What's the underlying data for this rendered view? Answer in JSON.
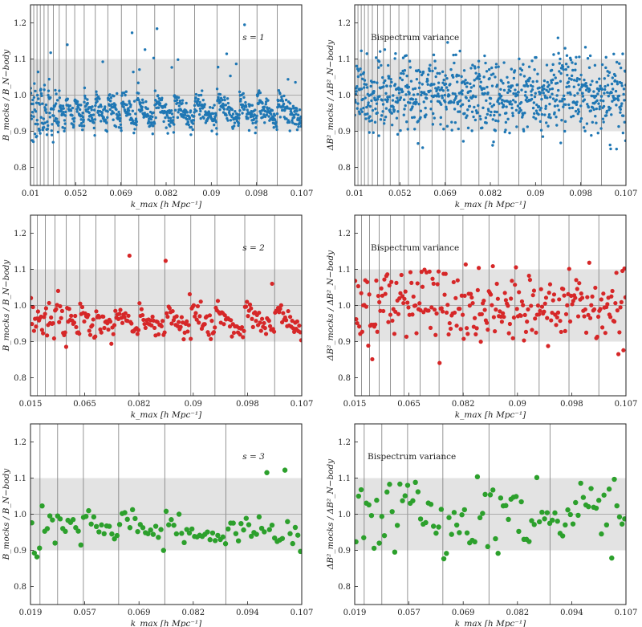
{
  "figure": {
    "panels": [
      {
        "id": "p1",
        "row": 0,
        "col": 0,
        "color": "#1f77b4",
        "annotation": "s = 1",
        "ylabel": "B_mocks / B_N−body",
        "xlabel": "k_max [h Mpc⁻¹]",
        "xticks": [
          "0.01",
          "0.052",
          "0.069",
          "0.082",
          "0.09",
          "0.098",
          "0.107"
        ],
        "yticks": [
          "0.8",
          "0.9",
          "1.0",
          "1.1",
          "1.2"
        ],
        "vlines": [
          0.0,
          0.012,
          0.024,
          0.036,
          0.05,
          0.065,
          0.084,
          0.106,
          0.131,
          0.163,
          0.198,
          0.239,
          0.285,
          0.335,
          0.392,
          0.458,
          0.53,
          0.605,
          0.688,
          0.77,
          0.835,
          0.91,
          1.0
        ],
        "n": 880,
        "seed": 11,
        "pattern": "sawtooth",
        "msize": 1.7
      },
      {
        "id": "p2",
        "row": 0,
        "col": 1,
        "color": "#1f77b4",
        "annotation": "Bispectrum variance",
        "ylabel": "ΔB²_mocks / ΔB²_N−body",
        "xlabel": "k_max [h Mpc⁻¹]",
        "xticks": [
          "0.01",
          "0.052",
          "0.069",
          "0.082",
          "0.09",
          "0.098",
          "0.107"
        ],
        "yticks": [
          "0.8",
          "0.9",
          "1.0",
          "1.1",
          "1.2"
        ],
        "vlines": [
          0.0,
          0.012,
          0.024,
          0.036,
          0.05,
          0.065,
          0.084,
          0.106,
          0.131,
          0.163,
          0.198,
          0.239,
          0.285,
          0.335,
          0.392,
          0.458,
          0.53,
          0.605,
          0.688,
          0.77,
          0.835,
          0.91,
          1.0
        ],
        "n": 880,
        "seed": 23,
        "pattern": "noise",
        "msize": 1.7
      },
      {
        "id": "p3",
        "row": 1,
        "col": 0,
        "color": "#d62728",
        "annotation": "s = 2",
        "ylabel": "B_mocks / B_N−body",
        "xlabel": "k_max [h Mpc⁻¹]",
        "xticks": [
          "0.015",
          "0.065",
          "0.082",
          "0.09",
          "0.098",
          "0.107"
        ],
        "yticks": [
          "0.8",
          "0.9",
          "1.0",
          "1.1",
          "1.2"
        ],
        "vlines": [
          0.0,
          0.025,
          0.055,
          0.09,
          0.132,
          0.182,
          0.241,
          0.311,
          0.399,
          0.495,
          0.591,
          0.68,
          0.79,
          0.9,
          1.0
        ],
        "n": 270,
        "seed": 37,
        "pattern": "sawtooth",
        "msize": 2.6
      },
      {
        "id": "p4",
        "row": 1,
        "col": 1,
        "color": "#d62728",
        "annotation": "Bispectrum variance",
        "ylabel": "ΔB²_mocks / ΔB²_N−body",
        "xlabel": "k_max [h Mpc⁻¹]",
        "xticks": [
          "0.015",
          "0.065",
          "0.082",
          "0.09",
          "0.098",
          "0.107"
        ],
        "yticks": [
          "0.8",
          "0.9",
          "1.0",
          "1.1",
          "1.2"
        ],
        "vlines": [
          0.0,
          0.025,
          0.055,
          0.09,
          0.132,
          0.182,
          0.241,
          0.311,
          0.399,
          0.495,
          0.591,
          0.68,
          0.79,
          0.9,
          1.0
        ],
        "n": 270,
        "seed": 51,
        "pattern": "noise",
        "msize": 2.6
      },
      {
        "id": "p5",
        "row": 2,
        "col": 0,
        "color": "#2ca02c",
        "annotation": "s = 3",
        "ylabel": "B_mocks / B_N−body",
        "xlabel": "k_max [h Mpc⁻¹]",
        "xticks": [
          "0.019",
          "0.057",
          "0.069",
          "0.082",
          "0.094",
          "0.107"
        ],
        "yticks": [
          "0.8",
          "0.9",
          "1.0",
          "1.1",
          "1.2"
        ],
        "vlines": [
          0.0,
          0.035,
          0.1,
          0.195,
          0.325,
          0.495,
          0.72,
          1.0
        ],
        "n": 105,
        "seed": 67,
        "pattern": "sawtooth",
        "msize": 3.2
      },
      {
        "id": "p6",
        "row": 2,
        "col": 1,
        "color": "#2ca02c",
        "annotation": "Bispectrum variance",
        "ylabel": "ΔB²_mocks / ΔB²_N−body",
        "xlabel": "k_max [h Mpc⁻¹]",
        "xticks": [
          "0.019",
          "0.057",
          "0.069",
          "0.082",
          "0.094",
          "0.107"
        ],
        "yticks": [
          "0.8",
          "0.9",
          "1.0",
          "1.1",
          "1.2"
        ],
        "vlines": [
          0.0,
          0.035,
          0.1,
          0.195,
          0.325,
          0.495,
          0.72,
          1.0
        ],
        "n": 105,
        "seed": 79,
        "pattern": "noise",
        "msize": 3.2
      }
    ]
  },
  "chart_data": [
    {
      "type": "scatter",
      "series": [
        {
          "name": "",
          "color": "#1f77b4"
        }
      ],
      "xlabel": "k_max [h Mpc⁻¹]",
      "ylabel": "B_mocks / B_N−body",
      "ylim": [
        0.75,
        1.25
      ],
      "band": [
        0.9,
        1.1
      ],
      "reference_line": 1.0,
      "xticklabels": [
        "0.01",
        "0.052",
        "0.069",
        "0.082",
        "0.09",
        "0.098",
        "0.107"
      ]
    },
    {
      "type": "scatter",
      "series": [
        {
          "name": "",
          "color": "#1f77b4"
        }
      ],
      "xlabel": "k_max [h Mpc⁻¹]",
      "ylabel": "ΔB²_mocks / ΔB²_N−body",
      "ylim": [
        0.75,
        1.25
      ],
      "band": [
        0.9,
        1.1
      ],
      "reference_line": 1.0,
      "xticklabels": [
        "0.01",
        "0.052",
        "0.069",
        "0.082",
        "0.09",
        "0.098",
        "0.107"
      ]
    },
    {
      "type": "scatter",
      "series": [
        {
          "name": "",
          "color": "#d62728"
        }
      ],
      "xlabel": "k_max [h Mpc⁻¹]",
      "ylabel": "B_mocks / B_N−body",
      "ylim": [
        0.75,
        1.25
      ],
      "band": [
        0.9,
        1.1
      ],
      "reference_line": 1.0,
      "xticklabels": [
        "0.015",
        "0.065",
        "0.082",
        "0.09",
        "0.098",
        "0.107"
      ]
    },
    {
      "type": "scatter",
      "series": [
        {
          "name": "",
          "color": "#d62728"
        }
      ],
      "xlabel": "k_max [h Mpc⁻¹]",
      "ylabel": "ΔB²_mocks / ΔB²_N−body",
      "ylim": [
        0.75,
        1.25
      ],
      "band": [
        0.9,
        1.1
      ],
      "reference_line": 1.0,
      "xticklabels": [
        "0.015",
        "0.065",
        "0.082",
        "0.09",
        "0.098",
        "0.107"
      ]
    },
    {
      "type": "scatter",
      "series": [
        {
          "name": "",
          "color": "#2ca02c"
        }
      ],
      "xlabel": "k_max [h Mpc⁻¹]",
      "ylabel": "B_mocks / B_N−body",
      "ylim": [
        0.75,
        1.25
      ],
      "band": [
        0.9,
        1.1
      ],
      "reference_line": 1.0,
      "xticklabels": [
        "0.019",
        "0.057",
        "0.069",
        "0.082",
        "0.094",
        "0.107"
      ]
    },
    {
      "type": "scatter",
      "series": [
        {
          "name": "",
          "color": "#2ca02c"
        }
      ],
      "xlabel": "k_max [h Mpc⁻¹]",
      "ylabel": "ΔB²_mocks / ΔB²_N−body",
      "ylim": [
        0.75,
        1.25
      ],
      "band": [
        0.9,
        1.1
      ],
      "reference_line": 1.0,
      "xticklabels": [
        "0.019",
        "0.057",
        "0.069",
        "0.082",
        "0.094",
        "0.107"
      ]
    }
  ]
}
